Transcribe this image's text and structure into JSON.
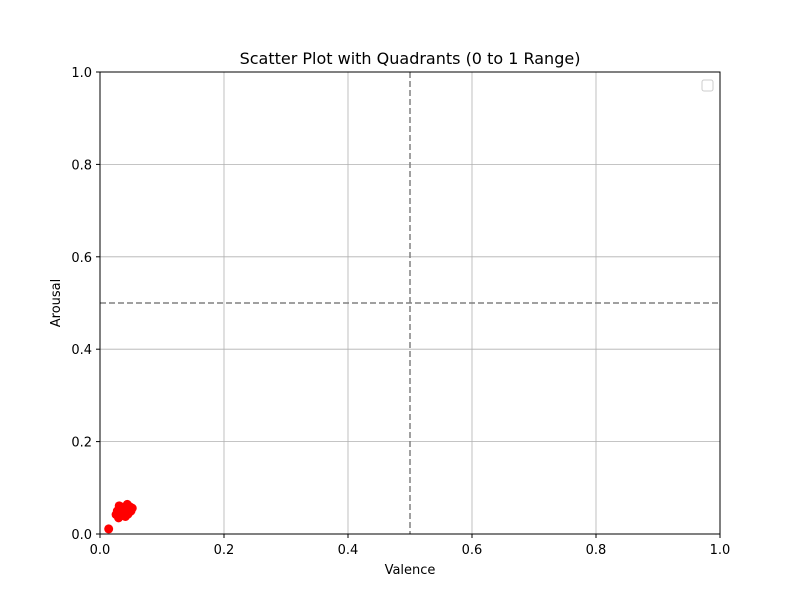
{
  "chart_data": {
    "type": "scatter",
    "title": "Scatter Plot with Quadrants (0 to 1 Range)",
    "xlabel": "Valence",
    "ylabel": "Arousal",
    "xlim": [
      0,
      1
    ],
    "ylim": [
      0,
      1
    ],
    "xticks": [
      "0.0",
      "0.2",
      "0.4",
      "0.6",
      "0.8",
      "1.0"
    ],
    "yticks": [
      "0.0",
      "0.2",
      "0.4",
      "0.6",
      "0.8",
      "1.0"
    ],
    "grid": true,
    "legend": "top-right (empty)",
    "quadrant_lines": {
      "x": 0.5,
      "y": 0.5,
      "style": "dashed",
      "color": "#808080"
    },
    "marker_color": "#ff0000",
    "points": [
      {
        "x": 0.014,
        "y": 0.011
      },
      {
        "x": 0.026,
        "y": 0.042
      },
      {
        "x": 0.028,
        "y": 0.05
      },
      {
        "x": 0.03,
        "y": 0.035
      },
      {
        "x": 0.032,
        "y": 0.055
      },
      {
        "x": 0.034,
        "y": 0.047
      },
      {
        "x": 0.035,
        "y": 0.04
      },
      {
        "x": 0.036,
        "y": 0.058
      },
      {
        "x": 0.038,
        "y": 0.052
      },
      {
        "x": 0.04,
        "y": 0.044
      },
      {
        "x": 0.041,
        "y": 0.038
      },
      {
        "x": 0.042,
        "y": 0.056
      },
      {
        "x": 0.043,
        "y": 0.049
      },
      {
        "x": 0.044,
        "y": 0.064
      },
      {
        "x": 0.045,
        "y": 0.043
      },
      {
        "x": 0.046,
        "y": 0.053
      },
      {
        "x": 0.048,
        "y": 0.059
      },
      {
        "x": 0.05,
        "y": 0.05
      },
      {
        "x": 0.052,
        "y": 0.056
      },
      {
        "x": 0.037,
        "y": 0.046
      },
      {
        "x": 0.031,
        "y": 0.061
      },
      {
        "x": 0.047,
        "y": 0.047
      }
    ]
  }
}
